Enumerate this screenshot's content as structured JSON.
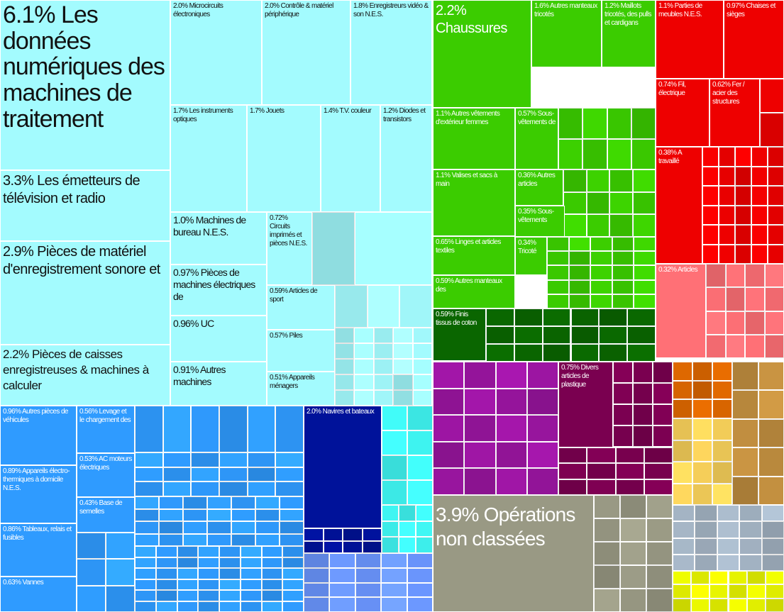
{
  "chart_data": {
    "type": "treemap",
    "colors": {
      "electronics": "#a3fbfe",
      "vehicles": "#2f9bff",
      "navy": "#00129a",
      "cyan": "#3ff5f2",
      "periwinkle": "#6b96ff",
      "textiles": "#3bcc00",
      "dark_green": "#0a6600",
      "metals": "#ee0000",
      "pink": "#ff7076",
      "purple": "#9a15a0",
      "maroon": "#7a0050",
      "grey": "#999984",
      "orange": "#d86500",
      "brown": "#bf8d3f",
      "yellow": "#f7d05a",
      "slate": "#a4b4c4",
      "lime": "#e6f300"
    },
    "items": [
      {
        "label": "6.1% Les données numériques des machines de traitement",
        "share": 6.1,
        "group": "electronics"
      },
      {
        "label": "3.3% Les émetteurs de télévision et radio",
        "share": 3.3,
        "group": "electronics"
      },
      {
        "label": "2.9% Pièces de matériel d'enregistrement sonore et",
        "share": 2.9,
        "group": "electronics"
      },
      {
        "label": "2.2% Pièces de caisses enregistreuses & machines à calculer",
        "share": 2.2,
        "group": "electronics"
      },
      {
        "label": "2.0% Microcircuits électroniques",
        "share": 2.0,
        "group": "electronics"
      },
      {
        "label": "2.0% Contrôle & matériel périphérique",
        "share": 2.0,
        "group": "electronics"
      },
      {
        "label": "1.8% Enregistreurs vidéo & son N.E.S.",
        "share": 1.8,
        "group": "electronics"
      },
      {
        "label": "1.7% Les instruments optiques",
        "share": 1.7,
        "group": "electronics"
      },
      {
        "label": "1.7% Jouets",
        "share": 1.7,
        "group": "electronics"
      },
      {
        "label": "1.4% T.V. couleur",
        "share": 1.4,
        "group": "electronics"
      },
      {
        "label": "1.2% Diodes et transistors",
        "share": 1.2,
        "group": "electronics"
      },
      {
        "label": "1.0% Machines de bureau N.E.S.",
        "share": 1.0,
        "group": "electronics"
      },
      {
        "label": "0.72% Circuits imprimés et pièces N.E.S.",
        "share": 0.72,
        "group": "electronics"
      },
      {
        "label": "0.97% Pièces de machines électriques de",
        "share": 0.97,
        "group": "electronics"
      },
      {
        "label": "0.96% UC",
        "share": 0.96,
        "group": "electronics"
      },
      {
        "label": "0.91% Autres machines",
        "share": 0.91,
        "group": "electronics"
      },
      {
        "label": "0.59% Articles de sport",
        "share": 0.59,
        "group": "electronics"
      },
      {
        "label": "0.57% Piles",
        "share": 0.57,
        "group": "electronics"
      },
      {
        "label": "0.51% Appareils ménagers",
        "share": 0.51,
        "group": "electronics"
      },
      {
        "label": "0.96% Autres pièces de véhicules",
        "share": 0.96,
        "group": "vehicles"
      },
      {
        "label": "0.56% Levage et le chargement des",
        "share": 0.56,
        "group": "vehicles"
      },
      {
        "label": "0.53% AC moteurs électriques",
        "share": 0.53,
        "group": "vehicles"
      },
      {
        "label": "0.43% Base de semelles",
        "share": 0.43,
        "group": "vehicles"
      },
      {
        "label": "0.89% Appareils électro-thermiques à domicile N.E.S.",
        "share": 0.89,
        "group": "vehicles"
      },
      {
        "label": "0.86% Tableaux, relais et fusibles",
        "share": 0.86,
        "group": "vehicles"
      },
      {
        "label": "0.63% Vannes",
        "share": 0.63,
        "group": "vehicles"
      },
      {
        "label": "2.0% Navires et bateaux",
        "share": 2.0,
        "group": "navy"
      },
      {
        "label": "2.2% Chaussures",
        "share": 2.2,
        "group": "textiles"
      },
      {
        "label": "1.6% Autres manteaux tricotés",
        "share": 1.6,
        "group": "textiles"
      },
      {
        "label": "1.2% Maillots tricotés, des pulls et cardigans",
        "share": 1.2,
        "group": "textiles"
      },
      {
        "label": "1.1% Autres vêtements d'extérieur femmes",
        "share": 1.1,
        "group": "textiles"
      },
      {
        "label": "0.57% Sous-vêtements de",
        "share": 0.57,
        "group": "textiles"
      },
      {
        "label": "1.1% Valises et sacs à main",
        "share": 1.1,
        "group": "textiles"
      },
      {
        "label": "0.36% Autres articles",
        "share": 0.36,
        "group": "textiles"
      },
      {
        "label": "0.35% Sous-vêtements",
        "share": 0.35,
        "group": "textiles"
      },
      {
        "label": "0.65% Linges et articles textiles",
        "share": 0.65,
        "group": "textiles"
      },
      {
        "label": "0.34% Tricoté",
        "share": 0.34,
        "group": "textiles"
      },
      {
        "label": "0.59% Autres manteaux des",
        "share": 0.59,
        "group": "textiles"
      },
      {
        "label": "0.59% Finis tissus de coton",
        "share": 0.59,
        "group": "dark_green"
      },
      {
        "label": "1.1% Parties de meubles N.E.S.",
        "share": 1.1,
        "group": "metals"
      },
      {
        "label": "0.97% Chaises et sièges",
        "share": 0.97,
        "group": "metals"
      },
      {
        "label": "0.74% Fil, électrique",
        "share": 0.74,
        "group": "metals"
      },
      {
        "label": "0.62% Fer / acier des structures",
        "share": 0.62,
        "group": "metals"
      },
      {
        "label": "0.38% A travaillé",
        "share": 0.38,
        "group": "metals"
      },
      {
        "label": "0.32% Articles",
        "share": 0.32,
        "group": "pink"
      },
      {
        "label": "0.75% Divers articles de plastique",
        "share": 0.75,
        "group": "maroon"
      },
      {
        "label": "3.9% Opérations non classées",
        "share": 3.9,
        "group": "grey"
      }
    ]
  }
}
